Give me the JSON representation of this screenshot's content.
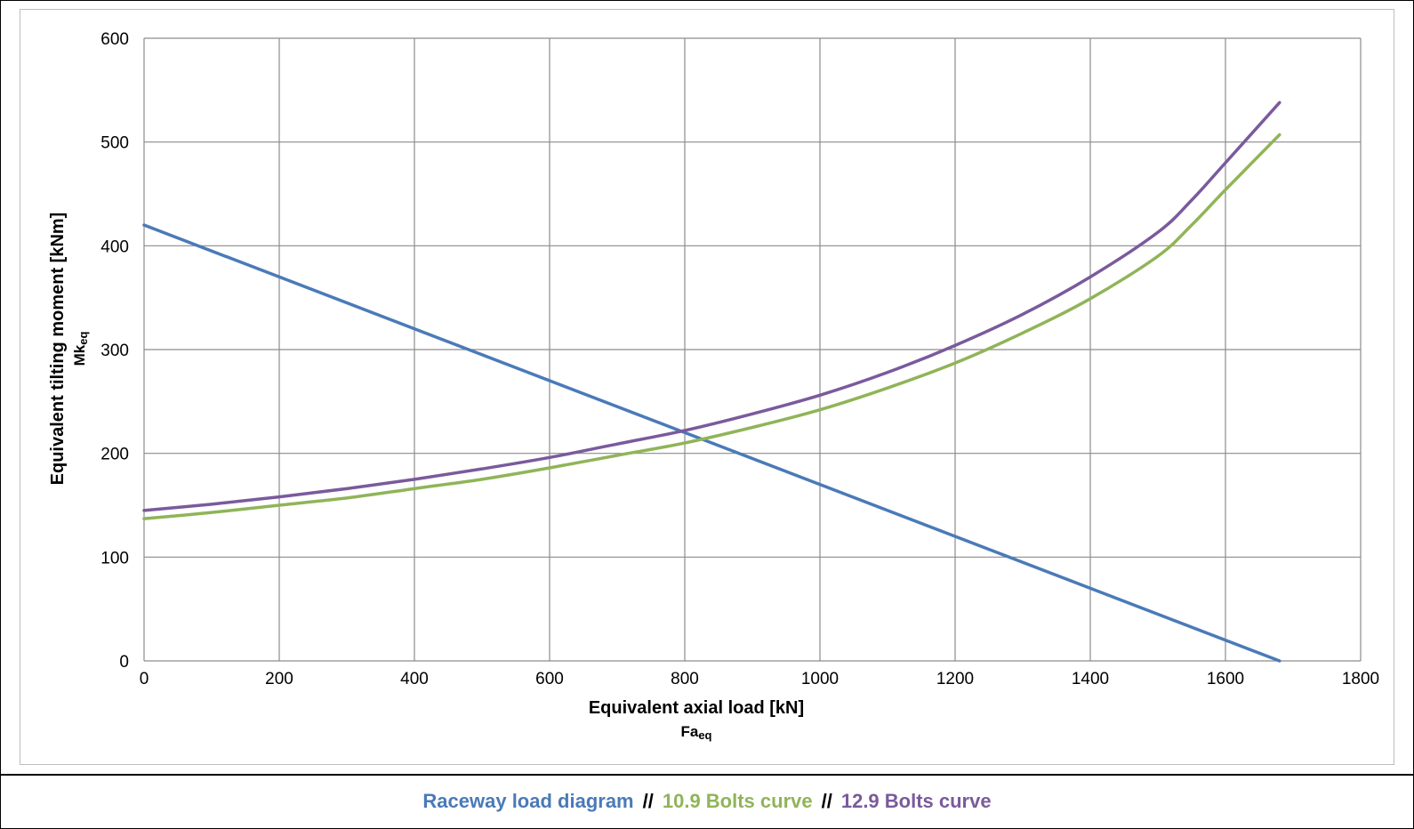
{
  "chart_data": {
    "type": "line",
    "xlabel": "Equivalent axial load [kN]",
    "xlabel_sub": "Fa",
    "xlabel_sub_index": "eq",
    "ylabel": "Equivalent tilting moment [kNm]",
    "ylabel_sub": "Mk",
    "ylabel_sub_index": "eq",
    "xlim": [
      0,
      1800
    ],
    "ylim": [
      0,
      600
    ],
    "x_ticks": [
      0,
      200,
      400,
      600,
      800,
      1000,
      1200,
      1400,
      1600,
      1800
    ],
    "y_ticks": [
      0,
      100,
      200,
      300,
      400,
      500,
      600
    ],
    "grid": true,
    "series": [
      {
        "name": "Raceway load diagram",
        "color": "#4a7ab8",
        "x": [
          0,
          1680
        ],
        "y": [
          420,
          0
        ]
      },
      {
        "name": "10.9 Bolts curve",
        "color": "#90b458",
        "x": [
          0,
          100,
          200,
          300,
          400,
          500,
          600,
          700,
          800,
          900,
          1000,
          1100,
          1200,
          1300,
          1400,
          1500,
          1550,
          1600,
          1680
        ],
        "y": [
          137,
          143,
          150,
          157,
          166,
          175,
          186,
          198,
          210,
          225,
          242,
          263,
          287,
          316,
          349,
          390,
          420,
          454,
          507
        ]
      },
      {
        "name": "12.9 Bolts curve",
        "color": "#7a5a9c",
        "x": [
          0,
          100,
          200,
          300,
          400,
          500,
          600,
          700,
          800,
          900,
          1000,
          1100,
          1200,
          1300,
          1400,
          1500,
          1550,
          1600,
          1680
        ],
        "y": [
          145,
          151,
          158,
          166,
          175,
          185,
          196,
          209,
          222,
          238,
          256,
          278,
          304,
          334,
          370,
          413,
          444,
          480,
          538
        ]
      }
    ]
  },
  "legend": {
    "items": [
      {
        "label": "Raceway load diagram",
        "color": "#4a7ab8"
      },
      {
        "label": "10.9 Bolts curve",
        "color": "#90b458"
      },
      {
        "label": "12.9 Bolts curve",
        "color": "#7a5a9c"
      }
    ],
    "separator": "//"
  }
}
